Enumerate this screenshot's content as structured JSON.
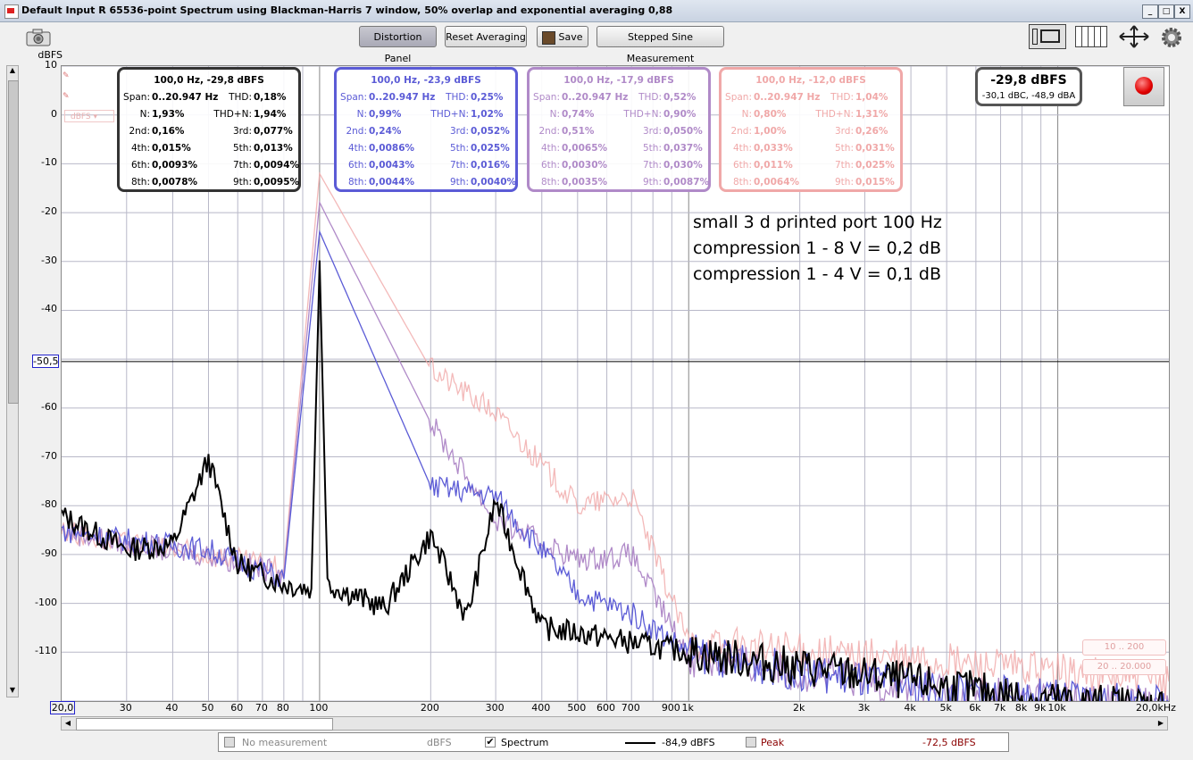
{
  "window": {
    "title": "Default Input R 65536-point Spectrum using Blackman-Harris 7 window, 50% overlap and exponential averaging 0,88",
    "minimize": "_",
    "maximize": "□",
    "close": "X"
  },
  "toolbar": {
    "camera_icon": "camera-icon",
    "distortion_panel": "Distortion Panel",
    "reset_averaging": "Reset Averaging",
    "save": "Save",
    "stepped_sine": "Stepped Sine Measurement",
    "right_icons": [
      "layout-single-icon",
      "columns-icon",
      "expand-arrows-icon",
      "gear-icon"
    ]
  },
  "yaxis": {
    "unit": "dBFS",
    "ticks": [
      "10",
      "0",
      "-10",
      "-20",
      "-30",
      "-40",
      "-50,5",
      "-60",
      "-70",
      "-80",
      "-90",
      "-100",
      "-110"
    ],
    "cursor_value": "-50,5"
  },
  "xaxis": {
    "unit": "20,0kHz",
    "start_label": "20,0",
    "ticks": [
      "30",
      "40",
      "50",
      "60",
      "70",
      "80",
      "100",
      "200",
      "300",
      "400",
      "500",
      "600",
      "700",
      "900",
      "1k",
      "2k",
      "3k",
      "4k",
      "5k",
      "6k",
      "7k",
      "8k",
      "9k",
      "10k"
    ]
  },
  "distortion_panels": [
    {
      "color": "#333333",
      "header": "100,0 Hz, -29,8 dBFS",
      "span_label": "Span:",
      "span": "0..20.947 Hz",
      "thd_label": "THD:",
      "thd": "0,18%",
      "n_label": "N:",
      "n": "1,93%",
      "thdn_label": "THD+N:",
      "thdn": "1,94%",
      "h2": "0,16%",
      "h3": "0,077%",
      "h4": "0,015%",
      "h5": "0,013%",
      "h6": "0,0093%",
      "h7": "0,0094%",
      "h8": "0,0078%",
      "h9": "0,0095%"
    },
    {
      "color": "#5b5bd6",
      "header": "100,0 Hz, -23,9 dBFS",
      "span_label": "Span:",
      "span": "0..20.947 Hz",
      "thd_label": "THD:",
      "thd": "0,25%",
      "n_label": "N:",
      "n": "0,99%",
      "thdn_label": "THD+N:",
      "thdn": "1,02%",
      "h2": "0,24%",
      "h3": "0,052%",
      "h4": "0,0086%",
      "h5": "0,025%",
      "h6": "0,0043%",
      "h7": "0,016%",
      "h8": "0,0044%",
      "h9": "0,0040%"
    },
    {
      "color": "#b08ac8",
      "header": "100,0 Hz, -17,9 dBFS",
      "span_label": "Span:",
      "span": "0..20.947 Hz",
      "thd_label": "THD:",
      "thd": "0,52%",
      "n_label": "N:",
      "n": "0,74%",
      "thdn_label": "THD+N:",
      "thdn": "0,90%",
      "h2": "0,51%",
      "h3": "0,050%",
      "h4": "0,0065%",
      "h5": "0,037%",
      "h6": "0,0030%",
      "h7": "0,030%",
      "h8": "0,0035%",
      "h9": "0,0087%"
    },
    {
      "color": "#f0a8a8",
      "header": "100,0 Hz, -12,0 dBFS",
      "span_label": "Span:",
      "span": "0..20.947 Hz",
      "thd_label": "THD:",
      "thd": "1,04%",
      "n_label": "N:",
      "n": "0,80%",
      "thdn_label": "THD+N:",
      "thdn": "1,31%",
      "h2": "1,00%",
      "h3": "0,26%",
      "h4": "0,033%",
      "h5": "0,031%",
      "h6": "0,011%",
      "h7": "0,025%",
      "h8": "0,0064%",
      "h9": "0,015%"
    }
  ],
  "harmonic_labels": {
    "h2": "2nd:",
    "h3": "3rd:",
    "h4": "4th:",
    "h5": "5th:",
    "h6": "6th:",
    "h7": "7th:",
    "h8": "8th:",
    "h9": "9th:"
  },
  "level_meter": {
    "main": "-29,8 dBFS",
    "sub": "-30,1 dBC, -48,9 dBA"
  },
  "annotation": {
    "line1": "small 3 d printed port 100 Hz",
    "line2": "compression 1 - 8 V = 0,2 dB",
    "line3": "compression 1 - 4 V = 0,1 dB"
  },
  "side_controls": {
    "dbfs_label": "dBFS"
  },
  "range_buttons": [
    "10 .. 200",
    "20 .. 20.000"
  ],
  "legend": {
    "no_measurement": "No measurement",
    "unit1": "dBFS",
    "spectrum": "Spectrum",
    "spectrum_value": "-84,9 dBFS",
    "peak": "Peak",
    "peak_value": "-72,5 dBFS"
  },
  "chart_data": {
    "type": "line",
    "xlabel": "",
    "ylabel": "dBFS",
    "xscale": "log",
    "xlim": [
      20,
      20000
    ],
    "ylim": [
      -120,
      10
    ],
    "grid": true,
    "series": [
      {
        "color": "#000000",
        "x": [
          20,
          30,
          40,
          50,
          60,
          80,
          95,
          100,
          105,
          150,
          200,
          250,
          300,
          400,
          500,
          700,
          1000,
          2000,
          5000,
          10000,
          20000
        ],
        "y": [
          -82,
          -89,
          -88,
          -70.5,
          -92,
          -96,
          -97,
          -29.8,
          -96,
          -101,
          -86,
          -103,
          -79,
          -105,
          -106,
          -108,
          -110,
          -113,
          -117,
          -120,
          -121
        ]
      },
      {
        "color": "#5b5bd6",
        "x": [
          20,
          30,
          50,
          80,
          100,
          200,
          300,
          500,
          700,
          1000,
          2000,
          5000,
          20000
        ],
        "y": [
          -85,
          -87,
          -89,
          -95,
          -23.9,
          -76,
          -78,
          -98,
          -102,
          -110,
          -114,
          -118,
          -121
        ]
      },
      {
        "color": "#b08ac8",
        "x": [
          20,
          30,
          50,
          80,
          100,
          200,
          300,
          500,
          700,
          1000,
          2000,
          5000,
          20000
        ],
        "y": [
          -85,
          -88,
          -90,
          -94,
          -17.9,
          -63,
          -83,
          -91,
          -90,
          -111,
          -114,
          -118,
          -121
        ]
      },
      {
        "color": "#f0a8a8",
        "x": [
          20,
          30,
          50,
          80,
          100,
          200,
          300,
          500,
          700,
          1000,
          2000,
          5000,
          20000
        ],
        "y": [
          -85,
          -88,
          -90,
          -93,
          -12,
          -52,
          -61,
          -80,
          -78,
          -108,
          -110,
          -112,
          -116
        ]
      }
    ]
  }
}
